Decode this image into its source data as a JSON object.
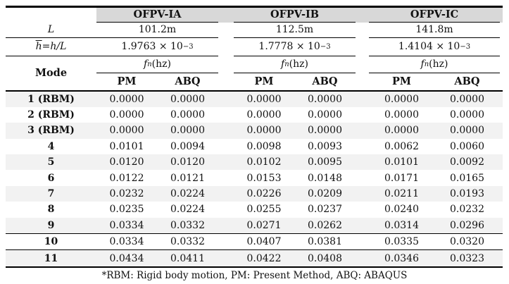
{
  "colors": {
    "header_band": "#d8d8d8",
    "row_stripe": "#f2f2f2",
    "rule": "#000000"
  },
  "table": {
    "groups": [
      {
        "name": "OFPV-IA",
        "length": "101.2m",
        "hbar_mant": "1.9763 × 10",
        "hbar_exp": "−3"
      },
      {
        "name": "OFPV-IB",
        "length": "112.5m",
        "hbar_mant": "1.7778 × 10",
        "hbar_exp": "−3"
      },
      {
        "name": "OFPV-IC",
        "length": "141.8m",
        "hbar_mant": "1.4104 × 10",
        "hbar_exp": "−3"
      }
    ],
    "labels": {
      "L": "L",
      "hbar_h": "h",
      "hbar_eq": " = ",
      "hbar_expr": "h/L",
      "mode": "Mode",
      "fn_f": "f",
      "fn_sub": "n",
      "fn_rest": " (hz)",
      "pm": "PM",
      "abq": "ABQ"
    },
    "rows": [
      {
        "mode": "1 (RBM)",
        "values": [
          "0.0000",
          "0.0000",
          "0.0000",
          "0.0000",
          "0.0000",
          "0.0000"
        ]
      },
      {
        "mode": "2 (RBM)",
        "values": [
          "0.0000",
          "0.0000",
          "0.0000",
          "0.0000",
          "0.0000",
          "0.0000"
        ]
      },
      {
        "mode": "3 (RBM)",
        "values": [
          "0.0000",
          "0.0000",
          "0.0000",
          "0.0000",
          "0.0000",
          "0.0000"
        ]
      },
      {
        "mode": "4",
        "values": [
          "0.0101",
          "0.0094",
          "0.0098",
          "0.0093",
          "0.0062",
          "0.0060"
        ]
      },
      {
        "mode": "5",
        "values": [
          "0.0120",
          "0.0120",
          "0.0102",
          "0.0095",
          "0.0101",
          "0.0092"
        ]
      },
      {
        "mode": "6",
        "values": [
          "0.0122",
          "0.0121",
          "0.0153",
          "0.0148",
          "0.0171",
          "0.0165"
        ]
      },
      {
        "mode": "7",
        "values": [
          "0.0232",
          "0.0224",
          "0.0226",
          "0.0209",
          "0.0211",
          "0.0193"
        ]
      },
      {
        "mode": "8",
        "values": [
          "0.0235",
          "0.0224",
          "0.0255",
          "0.0237",
          "0.0240",
          "0.0232"
        ]
      },
      {
        "mode": "9",
        "values": [
          "0.0334",
          "0.0332",
          "0.0271",
          "0.0262",
          "0.0314",
          "0.0296"
        ]
      },
      {
        "mode": "10",
        "values": [
          "0.0334",
          "0.0332",
          "0.0407",
          "0.0381",
          "0.0335",
          "0.0320"
        ]
      },
      {
        "mode": "11",
        "values": [
          "0.0434",
          "0.0411",
          "0.0422",
          "0.0408",
          "0.0346",
          "0.0323"
        ]
      }
    ],
    "footnote": "*RBM: Rigid body motion, PM: Present Method, ABQ: ABAQUS"
  }
}
